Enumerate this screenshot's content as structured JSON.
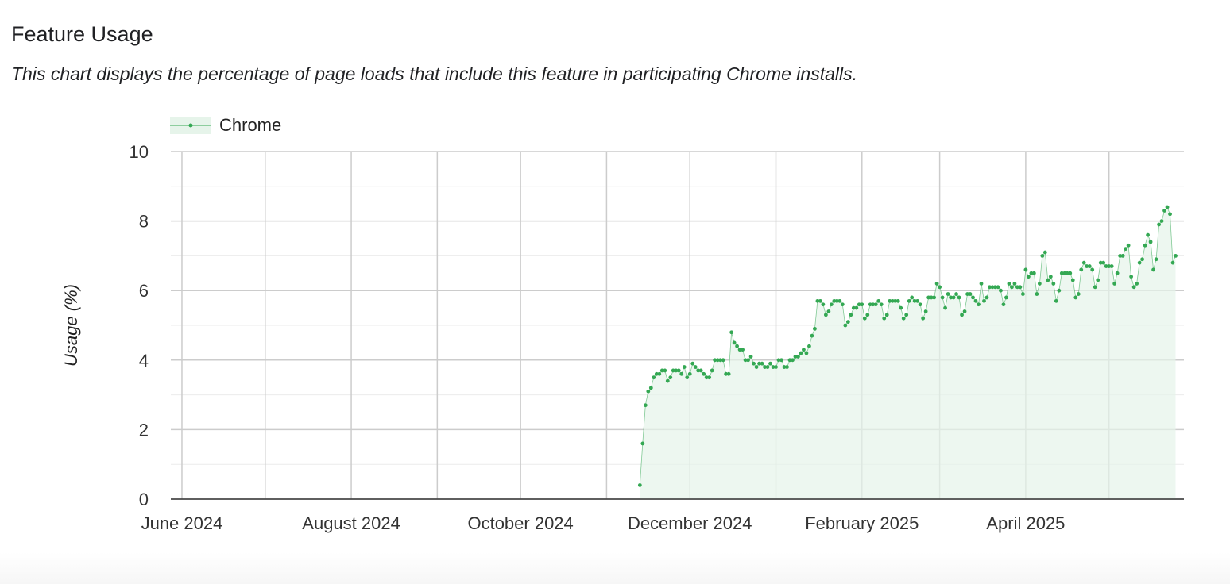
{
  "header": {
    "title": "Feature Usage",
    "subtitle": "This chart displays the percentage of page loads that include this feature in participating Chrome installs."
  },
  "chart_data": {
    "type": "line",
    "ylabel": "Usage (%)",
    "xlabel": "",
    "ylim": [
      0,
      10
    ],
    "yticks": [
      0,
      2,
      4,
      6,
      8,
      10
    ],
    "xlim": [
      "2024-05-28",
      "2025-05-28"
    ],
    "xticks": [
      {
        "date": "2024-06-01",
        "label": "June 2024"
      },
      {
        "date": "2024-08-01",
        "label": "August 2024"
      },
      {
        "date": "2024-10-01",
        "label": "October 2024"
      },
      {
        "date": "2024-12-01",
        "label": "December 2024"
      },
      {
        "date": "2025-02-01",
        "label": "February 2025"
      },
      {
        "date": "2025-04-01",
        "label": "April 2025"
      }
    ],
    "grid": true,
    "legend": "top-left",
    "colors": {
      "line": "#34a853",
      "fill": "#e6f4ea"
    },
    "series": [
      {
        "name": "Chrome",
        "points": [
          [
            "2024-11-13",
            0.4
          ],
          [
            "2024-11-14",
            1.6
          ],
          [
            "2024-11-15",
            2.7
          ],
          [
            "2024-11-16",
            3.1
          ],
          [
            "2024-11-17",
            3.2
          ],
          [
            "2024-11-18",
            3.5
          ],
          [
            "2024-11-19",
            3.6
          ],
          [
            "2024-11-20",
            3.6
          ],
          [
            "2024-11-21",
            3.7
          ],
          [
            "2024-11-22",
            3.7
          ],
          [
            "2024-11-23",
            3.4
          ],
          [
            "2024-11-24",
            3.5
          ],
          [
            "2024-11-25",
            3.7
          ],
          [
            "2024-11-26",
            3.7
          ],
          [
            "2024-11-27",
            3.7
          ],
          [
            "2024-11-28",
            3.6
          ],
          [
            "2024-11-29",
            3.8
          ],
          [
            "2024-11-30",
            3.5
          ],
          [
            "2024-12-01",
            3.6
          ],
          [
            "2024-12-02",
            3.9
          ],
          [
            "2024-12-03",
            3.8
          ],
          [
            "2024-12-04",
            3.7
          ],
          [
            "2024-12-05",
            3.7
          ],
          [
            "2024-12-06",
            3.6
          ],
          [
            "2024-12-07",
            3.5
          ],
          [
            "2024-12-08",
            3.5
          ],
          [
            "2024-12-09",
            3.7
          ],
          [
            "2024-12-10",
            4.0
          ],
          [
            "2024-12-11",
            4.0
          ],
          [
            "2024-12-12",
            4.0
          ],
          [
            "2024-12-13",
            4.0
          ],
          [
            "2024-12-14",
            3.6
          ],
          [
            "2024-12-15",
            3.6
          ],
          [
            "2024-12-16",
            4.8
          ],
          [
            "2024-12-17",
            4.5
          ],
          [
            "2024-12-18",
            4.4
          ],
          [
            "2024-12-19",
            4.3
          ],
          [
            "2024-12-20",
            4.3
          ],
          [
            "2024-12-21",
            4.0
          ],
          [
            "2024-12-22",
            4.0
          ],
          [
            "2024-12-23",
            4.1
          ],
          [
            "2024-12-24",
            3.9
          ],
          [
            "2024-12-25",
            3.8
          ],
          [
            "2024-12-26",
            3.9
          ],
          [
            "2024-12-27",
            3.9
          ],
          [
            "2024-12-28",
            3.8
          ],
          [
            "2024-12-29",
            3.8
          ],
          [
            "2024-12-30",
            3.9
          ],
          [
            "2024-12-31",
            3.8
          ],
          [
            "2025-01-01",
            3.8
          ],
          [
            "2025-01-02",
            4.0
          ],
          [
            "2025-01-03",
            4.0
          ],
          [
            "2025-01-04",
            3.8
          ],
          [
            "2025-01-05",
            3.8
          ],
          [
            "2025-01-06",
            4.0
          ],
          [
            "2025-01-07",
            4.0
          ],
          [
            "2025-01-08",
            4.1
          ],
          [
            "2025-01-09",
            4.1
          ],
          [
            "2025-01-10",
            4.2
          ],
          [
            "2025-01-11",
            4.3
          ],
          [
            "2025-01-12",
            4.2
          ],
          [
            "2025-01-13",
            4.4
          ],
          [
            "2025-01-14",
            4.7
          ],
          [
            "2025-01-15",
            4.9
          ],
          [
            "2025-01-16",
            5.7
          ],
          [
            "2025-01-17",
            5.7
          ],
          [
            "2025-01-18",
            5.6
          ],
          [
            "2025-01-19",
            5.3
          ],
          [
            "2025-01-20",
            5.4
          ],
          [
            "2025-01-21",
            5.6
          ],
          [
            "2025-01-22",
            5.7
          ],
          [
            "2025-01-23",
            5.7
          ],
          [
            "2025-01-24",
            5.7
          ],
          [
            "2025-01-25",
            5.6
          ],
          [
            "2025-01-26",
            5.0
          ],
          [
            "2025-01-27",
            5.1
          ],
          [
            "2025-01-28",
            5.3
          ],
          [
            "2025-01-29",
            5.5
          ],
          [
            "2025-01-30",
            5.5
          ],
          [
            "2025-01-31",
            5.6
          ],
          [
            "2025-02-01",
            5.6
          ],
          [
            "2025-02-02",
            5.2
          ],
          [
            "2025-02-03",
            5.3
          ],
          [
            "2025-02-04",
            5.6
          ],
          [
            "2025-02-05",
            5.6
          ],
          [
            "2025-02-06",
            5.6
          ],
          [
            "2025-02-07",
            5.7
          ],
          [
            "2025-02-08",
            5.6
          ],
          [
            "2025-02-09",
            5.2
          ],
          [
            "2025-02-10",
            5.3
          ],
          [
            "2025-02-11",
            5.7
          ],
          [
            "2025-02-12",
            5.7
          ],
          [
            "2025-02-13",
            5.7
          ],
          [
            "2025-02-14",
            5.7
          ],
          [
            "2025-02-15",
            5.5
          ],
          [
            "2025-02-16",
            5.2
          ],
          [
            "2025-02-17",
            5.3
          ],
          [
            "2025-02-18",
            5.7
          ],
          [
            "2025-02-19",
            5.8
          ],
          [
            "2025-02-20",
            5.7
          ],
          [
            "2025-02-21",
            5.7
          ],
          [
            "2025-02-22",
            5.6
          ],
          [
            "2025-02-23",
            5.2
          ],
          [
            "2025-02-24",
            5.4
          ],
          [
            "2025-02-25",
            5.8
          ],
          [
            "2025-02-26",
            5.8
          ],
          [
            "2025-02-27",
            5.8
          ],
          [
            "2025-02-28",
            6.2
          ],
          [
            "2025-03-01",
            6.1
          ],
          [
            "2025-03-02",
            5.8
          ],
          [
            "2025-03-03",
            5.5
          ],
          [
            "2025-03-04",
            5.9
          ],
          [
            "2025-03-05",
            5.8
          ],
          [
            "2025-03-06",
            5.8
          ],
          [
            "2025-03-07",
            5.9
          ],
          [
            "2025-03-08",
            5.8
          ],
          [
            "2025-03-09",
            5.3
          ],
          [
            "2025-03-10",
            5.4
          ],
          [
            "2025-03-11",
            5.9
          ],
          [
            "2025-03-12",
            5.9
          ],
          [
            "2025-03-13",
            5.8
          ],
          [
            "2025-03-14",
            5.7
          ],
          [
            "2025-03-15",
            5.6
          ],
          [
            "2025-03-16",
            6.2
          ],
          [
            "2025-03-17",
            5.7
          ],
          [
            "2025-03-18",
            5.8
          ],
          [
            "2025-03-19",
            6.1
          ],
          [
            "2025-03-20",
            6.1
          ],
          [
            "2025-03-21",
            6.1
          ],
          [
            "2025-03-22",
            6.1
          ],
          [
            "2025-03-23",
            6.0
          ],
          [
            "2025-03-24",
            5.6
          ],
          [
            "2025-03-25",
            5.8
          ],
          [
            "2025-03-26",
            6.2
          ],
          [
            "2025-03-27",
            6.1
          ],
          [
            "2025-03-28",
            6.2
          ],
          [
            "2025-03-29",
            6.1
          ],
          [
            "2025-03-30",
            6.1
          ],
          [
            "2025-03-31",
            5.9
          ],
          [
            "2025-04-01",
            6.6
          ],
          [
            "2025-04-02",
            6.4
          ],
          [
            "2025-04-03",
            6.5
          ],
          [
            "2025-04-04",
            6.5
          ],
          [
            "2025-04-05",
            5.9
          ],
          [
            "2025-04-06",
            6.2
          ],
          [
            "2025-04-07",
            7.0
          ],
          [
            "2025-04-08",
            7.1
          ],
          [
            "2025-04-09",
            6.3
          ],
          [
            "2025-04-10",
            6.4
          ],
          [
            "2025-04-11",
            6.2
          ],
          [
            "2025-04-12",
            5.7
          ],
          [
            "2025-04-13",
            6.0
          ],
          [
            "2025-04-14",
            6.5
          ],
          [
            "2025-04-15",
            6.5
          ],
          [
            "2025-04-16",
            6.5
          ],
          [
            "2025-04-17",
            6.5
          ],
          [
            "2025-04-18",
            6.3
          ],
          [
            "2025-04-19",
            5.8
          ],
          [
            "2025-04-20",
            5.9
          ],
          [
            "2025-04-21",
            6.6
          ],
          [
            "2025-04-22",
            6.8
          ],
          [
            "2025-04-23",
            6.7
          ],
          [
            "2025-04-24",
            6.7
          ],
          [
            "2025-04-25",
            6.6
          ],
          [
            "2025-04-26",
            6.1
          ],
          [
            "2025-04-27",
            6.3
          ],
          [
            "2025-04-28",
            6.8
          ],
          [
            "2025-04-29",
            6.8
          ],
          [
            "2025-04-30",
            6.7
          ],
          [
            "2025-05-01",
            6.7
          ],
          [
            "2025-05-02",
            6.7
          ],
          [
            "2025-05-03",
            6.2
          ],
          [
            "2025-05-04",
            6.5
          ],
          [
            "2025-05-05",
            7.0
          ],
          [
            "2025-05-06",
            7.0
          ],
          [
            "2025-05-07",
            7.2
          ],
          [
            "2025-05-08",
            7.3
          ],
          [
            "2025-05-09",
            6.4
          ],
          [
            "2025-05-10",
            6.1
          ],
          [
            "2025-05-11",
            6.2
          ],
          [
            "2025-05-12",
            6.8
          ],
          [
            "2025-05-13",
            6.9
          ],
          [
            "2025-05-14",
            7.3
          ],
          [
            "2025-05-15",
            7.6
          ],
          [
            "2025-05-16",
            7.4
          ],
          [
            "2025-05-17",
            6.6
          ],
          [
            "2025-05-18",
            6.9
          ],
          [
            "2025-05-19",
            7.9
          ],
          [
            "2025-05-20",
            8.0
          ],
          [
            "2025-05-21",
            8.3
          ],
          [
            "2025-05-22",
            8.4
          ],
          [
            "2025-05-23",
            8.2
          ],
          [
            "2025-05-24",
            6.8
          ],
          [
            "2025-05-25",
            7.0
          ]
        ]
      }
    ]
  }
}
